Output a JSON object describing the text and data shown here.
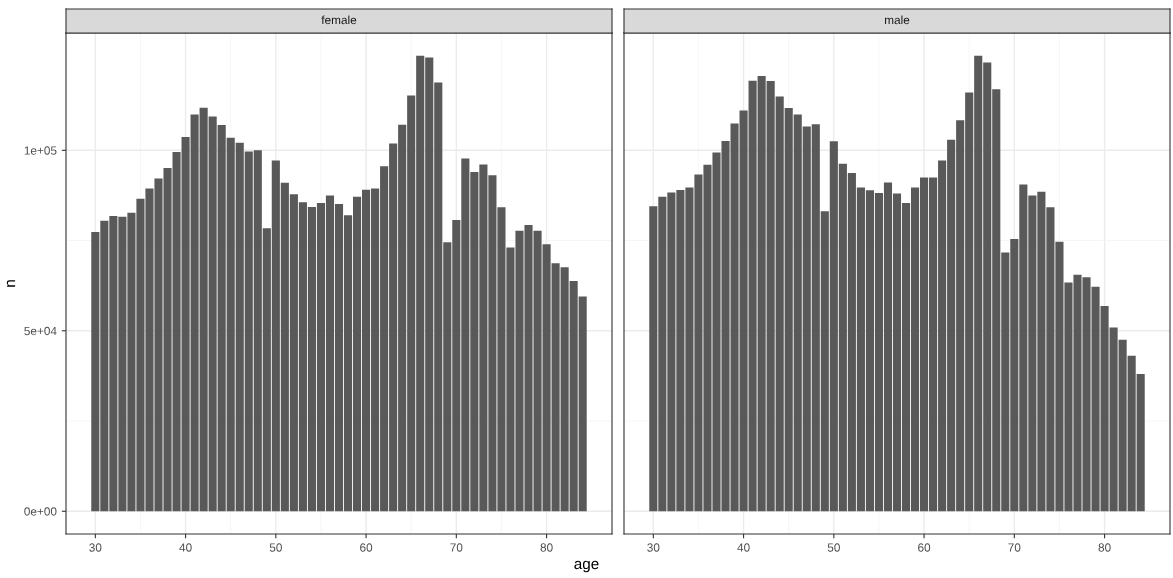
{
  "chart_data": [
    {
      "type": "bar",
      "title": "female",
      "ylabel": "n",
      "xlabel": "age",
      "color": "#595959",
      "grid": true,
      "tick_labels": true,
      "x": [
        30,
        31,
        32,
        33,
        34,
        35,
        36,
        37,
        38,
        39,
        40,
        41,
        42,
        43,
        44,
        45,
        46,
        47,
        48,
        49,
        50,
        51,
        52,
        53,
        54,
        55,
        56,
        57,
        58,
        59,
        60,
        61,
        62,
        63,
        64,
        65,
        66,
        67,
        68,
        69,
        70,
        71,
        72,
        73,
        74,
        75,
        76,
        77,
        78,
        79,
        80,
        81,
        82,
        83,
        84
      ],
      "values": [
        77400,
        80500,
        81800,
        81600,
        82700,
        86600,
        89400,
        92200,
        95100,
        99500,
        103700,
        109900,
        111800,
        109400,
        107000,
        103500,
        102100,
        99700,
        100000,
        78400,
        97200,
        91000,
        87800,
        85600,
        84300,
        85400,
        87500,
        85100,
        82000,
        87100,
        89100,
        89400,
        95600,
        101900,
        107100,
        115200,
        126200,
        125700,
        118800,
        74500,
        80700,
        97700,
        94000,
        96100,
        93100,
        84200,
        73100,
        77700,
        79300,
        77700,
        74000,
        68700,
        67600,
        63800,
        59500
      ],
      "xlim": [
        26.75,
        87.25
      ],
      "xticks": [
        30,
        40,
        50,
        60,
        70,
        80
      ],
      "ylim": [
        -6300,
        132500
      ],
      "yticks": [
        {
          "value": 0,
          "label": "0e+00"
        },
        {
          "value": 50000,
          "label": "5e+04"
        },
        {
          "value": 100000,
          "label": "1e+05"
        }
      ]
    },
    {
      "type": "bar",
      "title": "male",
      "color": "#595959",
      "grid": true,
      "tick_labels": "x",
      "x": [
        30,
        31,
        32,
        33,
        34,
        35,
        36,
        37,
        38,
        39,
        40,
        41,
        42,
        43,
        44,
        45,
        46,
        47,
        48,
        49,
        50,
        51,
        52,
        53,
        54,
        55,
        56,
        57,
        58,
        59,
        60,
        61,
        62,
        63,
        64,
        65,
        66,
        67,
        68,
        69,
        70,
        71,
        72,
        73,
        74,
        75,
        76,
        77,
        78,
        79,
        80,
        81,
        82,
        83,
        84
      ],
      "values": [
        84500,
        87100,
        88300,
        89000,
        89700,
        93300,
        96000,
        99400,
        102600,
        107400,
        111000,
        119300,
        120600,
        119200,
        114900,
        111700,
        109900,
        106600,
        107200,
        83100,
        102500,
        96300,
        93700,
        89700,
        88900,
        88200,
        91100,
        88000,
        85400,
        89700,
        92500,
        92500,
        97200,
        102900,
        108300,
        116000,
        126200,
        124300,
        116900,
        71700,
        75400,
        90500,
        87500,
        88500,
        84200,
        74700,
        63400,
        65500,
        64800,
        62200,
        56900,
        50900,
        47500,
        43100,
        38000
      ],
      "xlim": [
        26.75,
        87.25
      ],
      "xticks": [
        30,
        40,
        50,
        60,
        70,
        80
      ],
      "ylim": [
        -6300,
        132500
      ],
      "yticks": [
        {
          "value": 0,
          "label": null
        },
        {
          "value": 50000,
          "label": null
        },
        {
          "value": 100000,
          "label": null
        }
      ]
    }
  ]
}
